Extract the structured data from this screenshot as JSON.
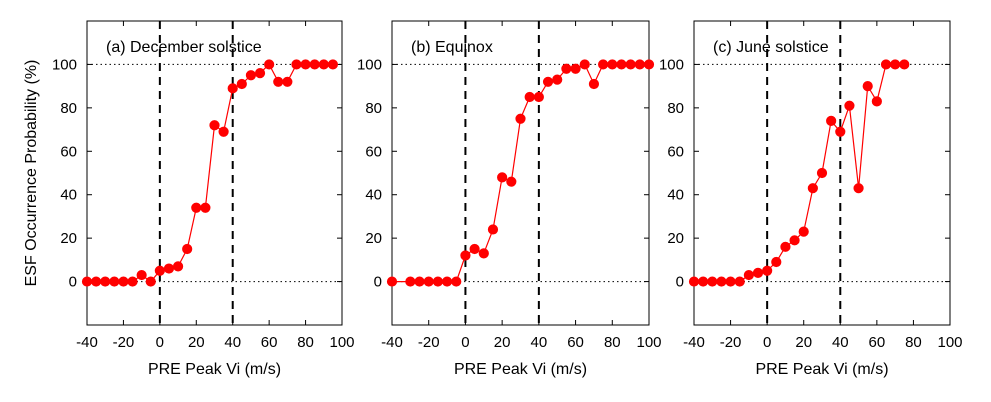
{
  "chart_data": [
    {
      "type": "line",
      "title": "(a)  December solstice",
      "xlabel": "PRE Peak Vi (m/s)",
      "ylabel": "ESF Occurrence Probability (%)",
      "xlim": [
        -40,
        100
      ],
      "ylim": [
        -20,
        120
      ],
      "xticks": [
        "-40",
        "-20",
        "0",
        "20",
        "40",
        "60",
        "80",
        "100"
      ],
      "yticks": [
        "0",
        "20",
        "40",
        "60",
        "80",
        "100"
      ],
      "vlines": [
        0,
        40
      ],
      "hlines": [
        0,
        100
      ],
      "grid": false,
      "color": "#ff0000",
      "series": [
        {
          "x": [
            -40,
            -35,
            -30,
            -25,
            -20,
            -15,
            -10,
            -5,
            0,
            5,
            10,
            15,
            20,
            25,
            30,
            35,
            40,
            45,
            50,
            55,
            60,
            65,
            70,
            75,
            80,
            85,
            90,
            95
          ],
          "y": [
            0,
            0,
            0,
            0,
            0,
            0,
            3,
            0,
            5,
            6,
            7,
            15,
            34,
            34,
            72,
            69,
            89,
            91,
            95,
            96,
            100,
            92,
            92,
            100,
            100,
            100,
            100,
            100
          ]
        }
      ]
    },
    {
      "type": "line",
      "title": "(b)  Equinox",
      "xlabel": "PRE Peak Vi (m/s)",
      "ylabel": "",
      "xlim": [
        -40,
        100
      ],
      "ylim": [
        -20,
        120
      ],
      "xticks": [
        "-40",
        "-20",
        "0",
        "20",
        "40",
        "60",
        "80",
        "100"
      ],
      "yticks": [
        "0",
        "20",
        "40",
        "60",
        "80",
        "100"
      ],
      "vlines": [
        0,
        40
      ],
      "hlines": [
        0,
        100
      ],
      "grid": false,
      "color": "#ff0000",
      "series": [
        {
          "x": [
            -40,
            -30,
            -25,
            -20,
            -15,
            -10,
            -5,
            0,
            5,
            10,
            15,
            20,
            25,
            30,
            35,
            40,
            45,
            50,
            55,
            60,
            65,
            70,
            75,
            80,
            85,
            90,
            95,
            100
          ],
          "y": [
            0,
            0,
            0,
            0,
            0,
            0,
            0,
            12,
            15,
            13,
            24,
            48,
            46,
            75,
            85,
            85,
            92,
            93,
            98,
            98,
            100,
            91,
            100,
            100,
            100,
            100,
            100,
            100
          ]
        }
      ]
    },
    {
      "type": "line",
      "title": "(c)  June solstice",
      "xlabel": "PRE Peak Vi (m/s)",
      "ylabel": "",
      "xlim": [
        -40,
        100
      ],
      "ylim": [
        -20,
        120
      ],
      "xticks": [
        "-40",
        "-20",
        "0",
        "20",
        "40",
        "60",
        "80",
        "100"
      ],
      "yticks": [
        "0",
        "20",
        "40",
        "60",
        "80",
        "100"
      ],
      "vlines": [
        0,
        40
      ],
      "hlines": [
        0,
        100
      ],
      "grid": false,
      "color": "#ff0000",
      "series": [
        {
          "x": [
            -40,
            -35,
            -30,
            -25,
            -20,
            -15,
            -10,
            -5,
            0,
            5,
            10,
            15,
            20,
            25,
            30,
            35,
            40,
            45,
            50,
            55,
            60,
            65,
            70,
            75
          ],
          "y": [
            0,
            0,
            0,
            0,
            0,
            0,
            3,
            4,
            5,
            9,
            16,
            19,
            23,
            43,
            50,
            74,
            69,
            81,
            43,
            90,
            83,
            100,
            100,
            100
          ]
        }
      ]
    }
  ]
}
